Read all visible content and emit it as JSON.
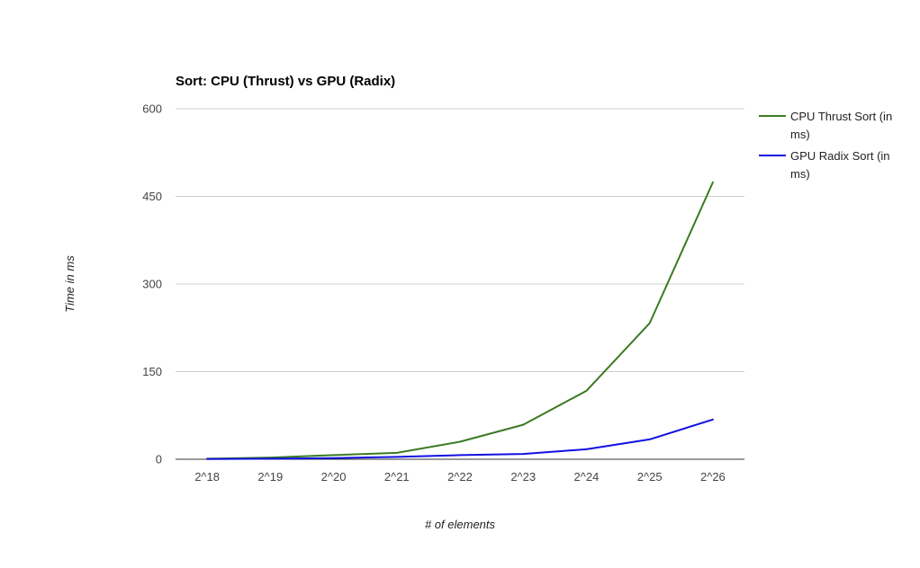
{
  "chart_data": {
    "type": "line",
    "title": "Sort: CPU (Thrust) vs GPU (Radix)",
    "xlabel": "# of elements",
    "ylabel": "Time in ms",
    "categories": [
      "2^18",
      "2^19",
      "2^20",
      "2^21",
      "2^22",
      "2^23",
      "2^24",
      "2^25",
      "2^26"
    ],
    "y_ticks": [
      "0",
      "150",
      "300",
      "450",
      "600"
    ],
    "ylim": [
      0,
      600
    ],
    "grid": true,
    "legend_position": "right",
    "series": [
      {
        "name": "CPU Thrust Sort (in ms)",
        "legend_lines": [
          "CPU Thrust Sort (in",
          "ms)"
        ],
        "color": "#3a7a23",
        "values": [
          1,
          3,
          7,
          11,
          30,
          59,
          117,
          233,
          474
        ]
      },
      {
        "name": "GPU Radix Sort (in ms)",
        "legend_lines": [
          "GPU Radix Sort (in",
          "ms)"
        ],
        "color": "#1010e0",
        "values": [
          0.5,
          1,
          2,
          4,
          7,
          9,
          17,
          34,
          68
        ]
      }
    ]
  }
}
